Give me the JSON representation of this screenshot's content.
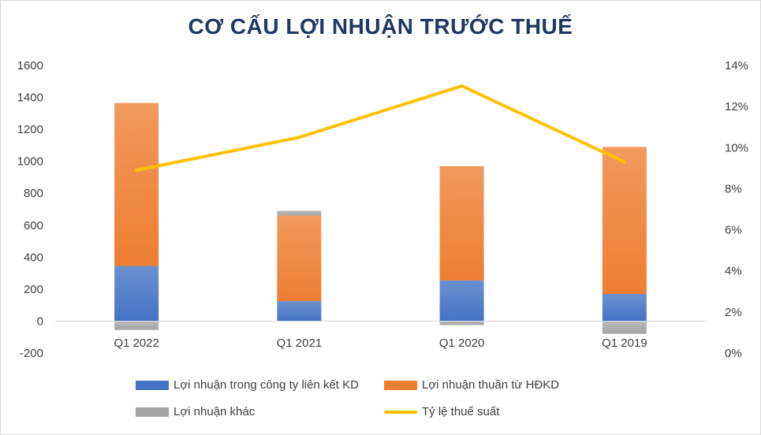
{
  "chart_data": {
    "type": "bar",
    "title": "CƠ CẤU LỢI NHUẬN TRƯỚC THUẾ",
    "categories": [
      "Q1 2022",
      "Q1 2021",
      "Q1 2020",
      "Q1 2019"
    ],
    "series": [
      {
        "name": "Lợi nhuận trong công ty liên kết KD",
        "type": "stacked-bar",
        "axis": "left",
        "color": "#4472c4",
        "values": [
          345,
          125,
          255,
          170
        ]
      },
      {
        "name": "Lợi nhuận thuần từ HĐKD",
        "type": "stacked-bar",
        "axis": "left",
        "color": "#ed7d31",
        "values": [
          1020,
          535,
          715,
          920
        ]
      },
      {
        "name": "Lợi nhuận khác",
        "type": "stacked-bar",
        "axis": "left",
        "color": "#a5a5a5",
        "values": [
          -55,
          30,
          -25,
          -80
        ]
      },
      {
        "name": "Tỷ lệ thuế suất",
        "type": "line",
        "axis": "right",
        "color": "#ffc000",
        "values": [
          8.9,
          10.5,
          13.0,
          9.3
        ]
      }
    ],
    "y_left": {
      "ylim": [
        -200,
        1600
      ],
      "ticks": [
        "-200",
        "0",
        "200",
        "400",
        "600",
        "800",
        "1000",
        "1200",
        "1400",
        "1600"
      ]
    },
    "y_right": {
      "ylim": [
        0,
        14
      ],
      "unit": "%",
      "ticks": [
        "0%",
        "2%",
        "4%",
        "6%",
        "8%",
        "10%",
        "12%",
        "14%"
      ]
    },
    "grid": false,
    "legend_position": "bottom"
  }
}
